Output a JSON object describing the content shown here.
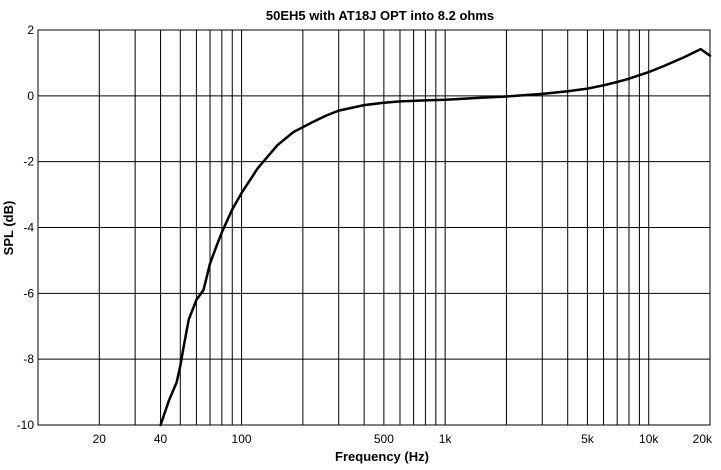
{
  "chart_data": {
    "type": "line",
    "title": "50EH5 with AT18J OPT into 8.2 ohms",
    "xlabel": "Frequency (Hz)",
    "ylabel": "SPL (dB)",
    "xscale": "log",
    "xlim": [
      10,
      20000
    ],
    "ylim": [
      -10,
      2
    ],
    "grid": true,
    "x_tick_labels": [
      {
        "v": 20,
        "label": "20"
      },
      {
        "v": 40,
        "label": "40"
      },
      {
        "v": 100,
        "label": "100"
      },
      {
        "v": 500,
        "label": "500"
      },
      {
        "v": 1000,
        "label": "1k"
      },
      {
        "v": 5000,
        "label": "5k"
      },
      {
        "v": 10000,
        "label": "10k"
      },
      {
        "v": 20000,
        "label": "20k"
      }
    ],
    "y_ticks": [
      2,
      0,
      -2,
      -4,
      -6,
      -8,
      -10
    ],
    "series": [
      {
        "color": "#000000",
        "x": [
          40,
          44,
          48,
          50,
          52,
          55,
          60,
          65,
          70,
          75,
          80,
          90,
          100,
          120,
          150,
          180,
          220,
          260,
          300,
          400,
          500,
          600,
          800,
          1000,
          1500,
          2000,
          3000,
          4000,
          5000,
          6000,
          7000,
          8000,
          10000,
          12000,
          15000,
          18000,
          20000
        ],
        "y": [
          -10,
          -9.25,
          -8.7,
          -8.2,
          -7.6,
          -6.8,
          -6.2,
          -5.9,
          -5.1,
          -4.6,
          -4.15,
          -3.45,
          -2.95,
          -2.2,
          -1.5,
          -1.1,
          -0.82,
          -0.6,
          -0.45,
          -0.28,
          -0.21,
          -0.17,
          -0.14,
          -0.12,
          -0.06,
          -0.02,
          0.06,
          0.14,
          0.22,
          0.32,
          0.42,
          0.52,
          0.72,
          0.92,
          1.18,
          1.42,
          1.22
        ]
      }
    ]
  }
}
